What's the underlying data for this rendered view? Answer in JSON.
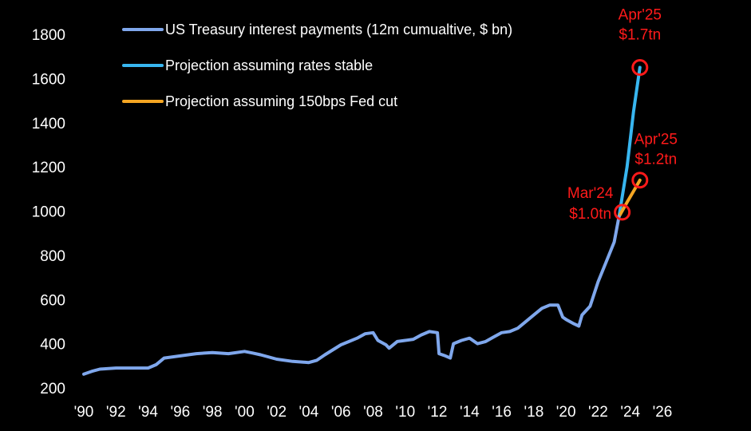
{
  "chart_data": {
    "type": "line",
    "title": "",
    "xlabel": "",
    "ylabel": "",
    "xlim": [
      1990,
      2026
    ],
    "ylim": [
      200,
      1800
    ],
    "grid": false,
    "legend_position": "top",
    "x_tick_labels": [
      "'90",
      "'92",
      "'94",
      "'96",
      "'98",
      "'00",
      "'02",
      "'04",
      "'06",
      "'08",
      "'10",
      "'12",
      "'14",
      "'16",
      "'18",
      "'20",
      "'22",
      "'24",
      "'26"
    ],
    "x_ticks": [
      1990,
      1992,
      1994,
      1996,
      1998,
      2000,
      2002,
      2004,
      2006,
      2008,
      2010,
      2012,
      2014,
      2016,
      2018,
      2020,
      2022,
      2024,
      2026
    ],
    "y_ticks": [
      200,
      400,
      600,
      800,
      1000,
      1200,
      1400,
      1600,
      1800
    ],
    "y_tick_labels": [
      "200",
      "400",
      "600",
      "800",
      "1000",
      "1200",
      "1400",
      "1600",
      "1800"
    ],
    "series": [
      {
        "name": "US Treasury interest payments (12m cumualtive, $ bn)",
        "color": "#7fa7ec",
        "x": [
          1990,
          1990.5,
          1991,
          1992,
          1993,
          1994,
          1994.5,
          1995,
          1996,
          1997,
          1998,
          1999,
          2000,
          2000.5,
          2001,
          2002,
          2003,
          2004,
          2004.5,
          2005,
          2006,
          2006.5,
          2007,
          2007.5,
          2008,
          2008.3,
          2008.8,
          2009,
          2009.5,
          2010,
          2010.5,
          2011,
          2011.5,
          2012,
          2012.1,
          2012.5,
          2012.8,
          2013,
          2013.5,
          2014,
          2014.5,
          2015,
          2015.5,
          2016,
          2016.5,
          2017,
          2017.5,
          2018,
          2018.5,
          2019,
          2019.5,
          2019.8,
          2020,
          2020.5,
          2020.8,
          2021,
          2021.5,
          2022,
          2022.5,
          2023,
          2023.3
        ],
        "values": [
          262,
          275,
          285,
          290,
          290,
          290,
          305,
          335,
          345,
          355,
          360,
          355,
          365,
          358,
          350,
          330,
          320,
          315,
          325,
          350,
          395,
          410,
          425,
          445,
          450,
          415,
          395,
          380,
          410,
          415,
          420,
          440,
          455,
          450,
          355,
          345,
          335,
          400,
          415,
          425,
          400,
          410,
          430,
          450,
          455,
          470,
          500,
          530,
          560,
          575,
          575,
          520,
          510,
          490,
          480,
          530,
          570,
          680,
          770,
          860,
          975
        ]
      },
      {
        "name": "Projection assuming rates stable",
        "color": "#38b6f0",
        "x": [
          2023.3,
          2023.8,
          2024.2,
          2024.6
        ],
        "values": [
          975,
          1200,
          1450,
          1650
        ]
      },
      {
        "name": "Projection assuming 150bps Fed cut",
        "color": "#f5a623",
        "x": [
          2023.3,
          2023.8,
          2024.2,
          2024.6
        ],
        "values": [
          975,
          1040,
          1090,
          1140
        ]
      }
    ],
    "annotations": [
      {
        "id": "apr25-stable",
        "line1": "Apr'25",
        "line2": "$1.7tn",
        "x": 2024.6,
        "y": 1650,
        "color": "#ff1a1a"
      },
      {
        "id": "apr25-cut",
        "line1": "Apr'25",
        "line2": "$1.2tn",
        "x": 2024.6,
        "y": 1140,
        "color": "#ff1a1a"
      },
      {
        "id": "mar24",
        "line1": "Mar'24",
        "line2": "$1.0tn",
        "x": 2023.5,
        "y": 995,
        "color": "#ff1a1a"
      }
    ]
  }
}
